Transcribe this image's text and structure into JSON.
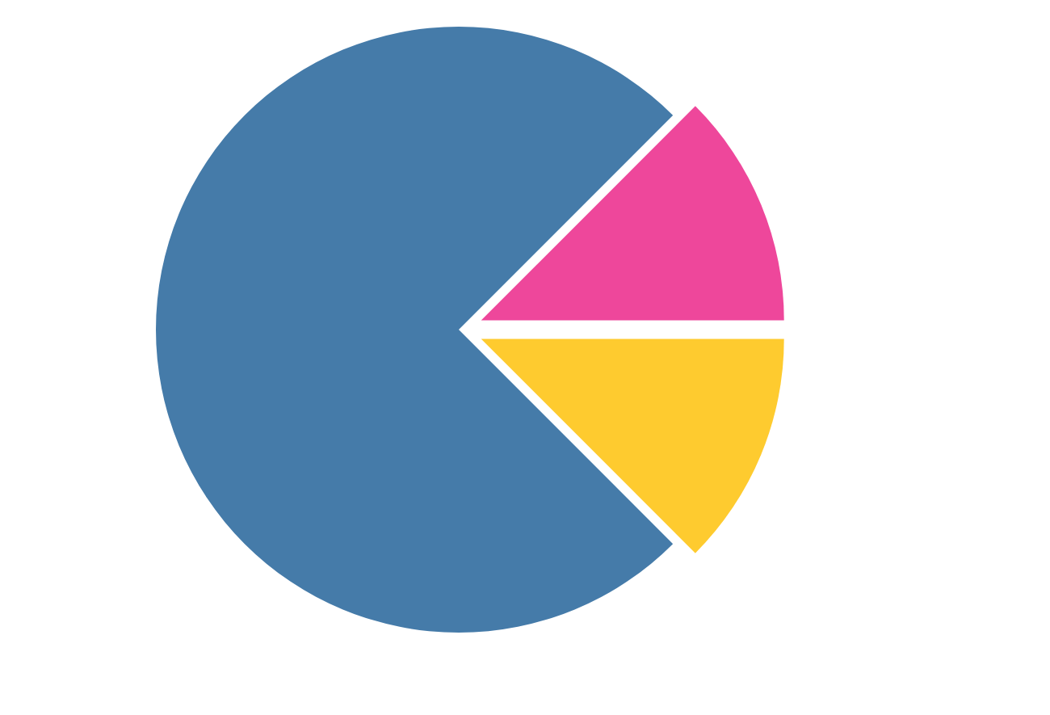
{
  "chart_data": {
    "type": "pie",
    "categories": [
      null,
      null,
      null
    ],
    "values": [
      75,
      12.5,
      12.5
    ],
    "colors": [
      "#457ba9",
      "#ee479b",
      "#fecb2f"
    ]
  }
}
